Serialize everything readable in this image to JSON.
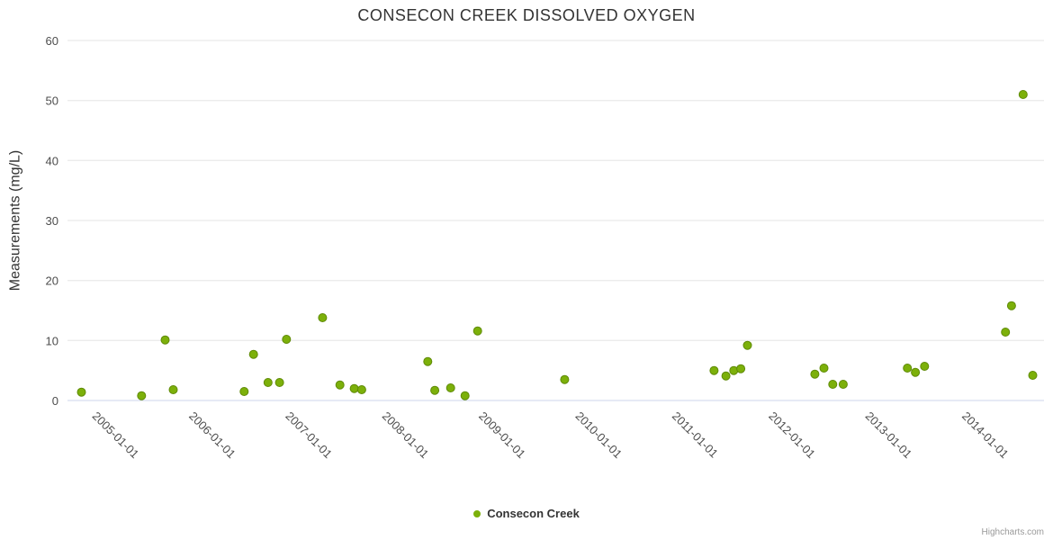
{
  "chart": {
    "title": "CONSECON CREEK DISSOLVED OXYGEN",
    "y_axis_title": "Measurements (mg/L)",
    "legend_label": "Consecon Creek",
    "credits": "Highcharts.com"
  },
  "chart_data": {
    "type": "scatter",
    "title": "CONSECON CREEK DISSOLVED OXYGEN",
    "xlabel": "",
    "ylabel": "Measurements (mg/L)",
    "ylim": [
      0,
      60
    ],
    "yticks": [
      0,
      10,
      20,
      30,
      40,
      50,
      60
    ],
    "xlim": [
      "2004-09-18",
      "2014-10-26"
    ],
    "xtick_labels": [
      "2005-01-01",
      "2006-01-01",
      "2007-01-01",
      "2008-01-01",
      "2009-01-01",
      "2010-01-01",
      "2011-01-01",
      "2012-01-01",
      "2013-01-01",
      "2014-01-01"
    ],
    "grid": "horizontal-only",
    "legend_position": "bottom",
    "series": [
      {
        "name": "Consecon Creek",
        "color": "#7cb00a",
        "stroke": "#5f8a07",
        "points": [
          [
            "2004-11-10",
            1.4
          ],
          [
            "2005-06-24",
            0.8
          ],
          [
            "2005-09-22",
            10.1
          ],
          [
            "2005-10-22",
            1.8
          ],
          [
            "2006-07-16",
            1.5
          ],
          [
            "2006-08-21",
            7.7
          ],
          [
            "2006-10-15",
            3.0
          ],
          [
            "2006-11-28",
            3.0
          ],
          [
            "2006-12-24",
            10.2
          ],
          [
            "2007-05-08",
            13.8
          ],
          [
            "2007-07-13",
            2.6
          ],
          [
            "2007-09-06",
            2.0
          ],
          [
            "2007-10-04",
            1.8
          ],
          [
            "2008-06-10",
            6.5
          ],
          [
            "2008-07-06",
            1.7
          ],
          [
            "2008-09-05",
            2.1
          ],
          [
            "2008-10-29",
            0.8
          ],
          [
            "2008-12-16",
            11.6
          ],
          [
            "2009-11-10",
            3.5
          ],
          [
            "2011-05-27",
            5.0
          ],
          [
            "2011-07-11",
            4.1
          ],
          [
            "2011-08-10",
            5.0
          ],
          [
            "2011-09-06",
            5.3
          ],
          [
            "2011-10-01",
            9.2
          ],
          [
            "2012-06-12",
            4.4
          ],
          [
            "2012-07-16",
            5.4
          ],
          [
            "2012-08-19",
            2.7
          ],
          [
            "2012-09-28",
            2.7
          ],
          [
            "2013-05-27",
            5.4
          ],
          [
            "2013-06-27",
            4.7
          ],
          [
            "2013-07-31",
            5.7
          ],
          [
            "2014-06-02",
            11.4
          ],
          [
            "2014-06-25",
            15.8
          ],
          [
            "2014-08-08",
            51.0
          ],
          [
            "2014-09-14",
            4.2
          ]
        ]
      }
    ]
  }
}
